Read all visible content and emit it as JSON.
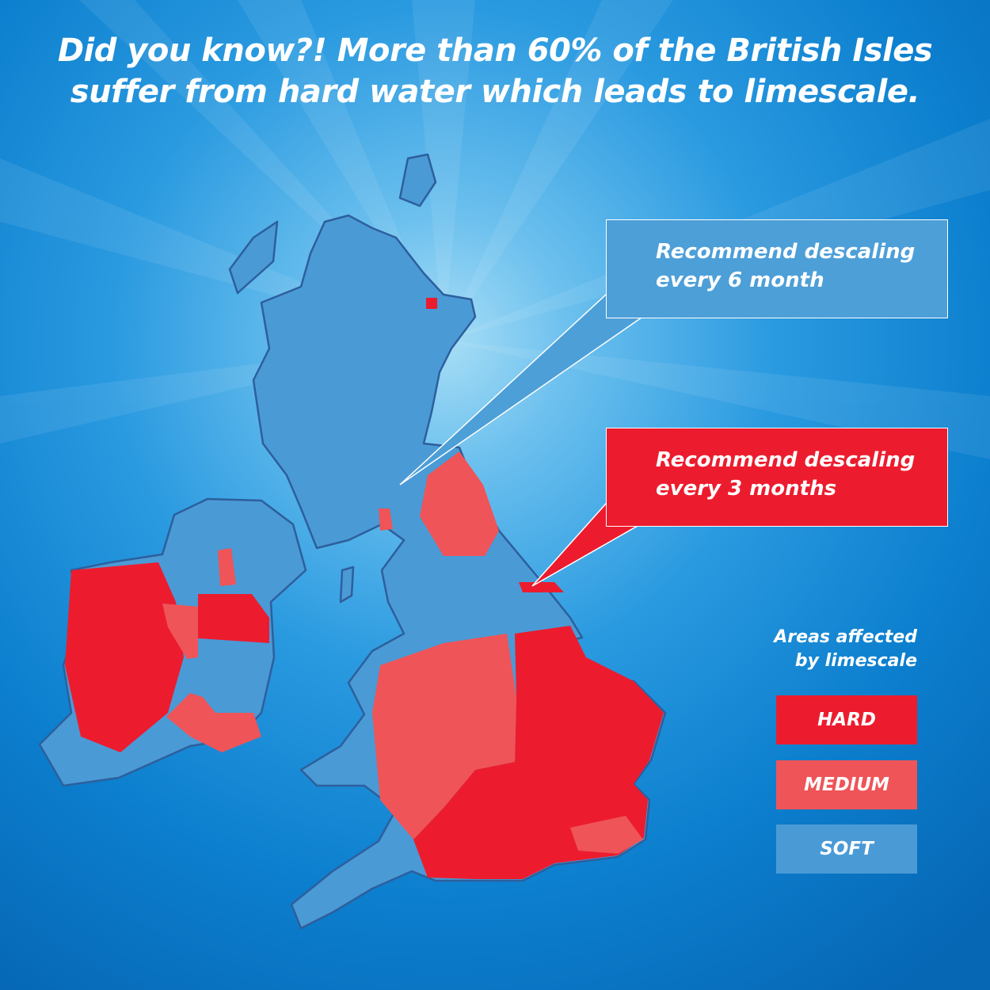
{
  "headline": [
    "Did you know?! More than 60% of the British Isles",
    "suffer from hard water which leads to limescale."
  ],
  "callouts": [
    {
      "lines": [
        "Recommend descaling",
        "every 6 month"
      ],
      "color": "#4d9fd8"
    },
    {
      "lines": [
        "Recommend descaling",
        "every 3 months"
      ],
      "color": "#ec1c2e"
    }
  ],
  "legend": {
    "title": [
      "Areas affected",
      "by limescale"
    ],
    "items": [
      {
        "label": "HARD",
        "color": "#ec1c2e"
      },
      {
        "label": "MEDIUM",
        "color": "#ef5458"
      },
      {
        "label": "SOFT",
        "color": "#4a9ad6"
      }
    ]
  }
}
